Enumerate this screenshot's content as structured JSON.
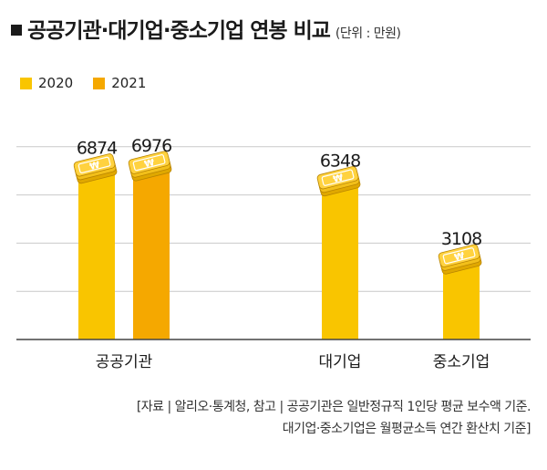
{
  "title": "공공기관·대기업·중소기업 연봉 비교",
  "unit": "(단위 : 만원)",
  "chart_data": {
    "type": "bar",
    "categories": [
      "공공기관",
      "대기업",
      "중소기업"
    ],
    "series": [
      {
        "name": "2020",
        "color": "#f9c500",
        "values": [
          6874,
          6348,
          3108
        ]
      },
      {
        "name": "2021",
        "color": "#f5a800",
        "values": [
          6976,
          null,
          null
        ]
      }
    ],
    "data_labels": [
      "6874",
      "6976",
      "6348",
      "3108"
    ],
    "ylim": [
      0,
      10000
    ],
    "grid": true,
    "legend": "top-left",
    "icon": "won-coin-stack-icon"
  },
  "footnote": {
    "line1": "[자료 | 알리오·통계청, 참고 | 공공기관은 일반정규직 1인당 평균 보수액 기준.",
    "line2": "대기업·중소기업은 월평균소득 연간 환산치 기준]"
  }
}
